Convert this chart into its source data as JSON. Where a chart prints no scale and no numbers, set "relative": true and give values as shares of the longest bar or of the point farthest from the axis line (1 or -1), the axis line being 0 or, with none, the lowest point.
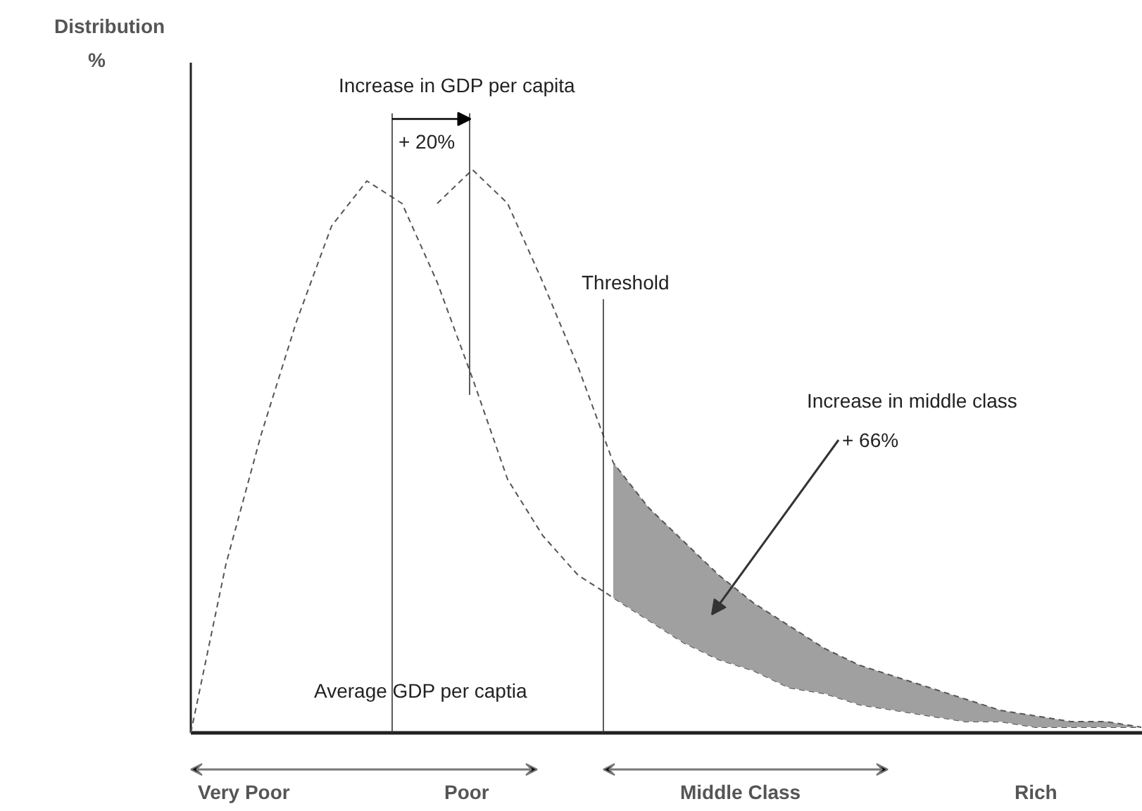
{
  "chart_data": {
    "type": "line",
    "relative": true,
    "categories": [
      null,
      null,
      null,
      null,
      null,
      null,
      null,
      null,
      null,
      null,
      null,
      null,
      null,
      null,
      null,
      null,
      null,
      null,
      null,
      null,
      null,
      null,
      null,
      null,
      null,
      null,
      null,
      null
    ],
    "series": [
      {
        "color": "#555555",
        "line_style": "dashed",
        "values": [
          0,
          0.3,
          0.53,
          0.73,
          0.9,
          0.98,
          0.94,
          0.8,
          0.63,
          0.45,
          0.35,
          0.28,
          0.24,
          0.2,
          0.16,
          0.13,
          0.11,
          0.08,
          0.07,
          0.05,
          0.04,
          0.03,
          0.02,
          0.02,
          0.01,
          0.01,
          0.01,
          0.01
        ]
      },
      {
        "color": "#555555",
        "line_style": "dashed",
        "values": [
          null,
          null,
          null,
          null,
          null,
          null,
          null,
          0.94,
          1,
          0.94,
          0.8,
          0.65,
          0.48,
          0.4,
          0.34,
          0.28,
          0.23,
          0.19,
          0.15,
          0.12,
          0.1,
          0.08,
          0.06,
          0.04,
          0.03,
          0.02,
          0.02,
          0.01
        ],
        "lower": [
          null,
          null,
          null,
          null,
          null,
          null,
          null,
          null,
          null,
          null,
          null,
          null,
          0.24,
          0.2,
          0.16,
          0.13,
          0.11,
          0.08,
          0.07,
          0.05,
          0.04,
          0.03,
          0.02,
          0.02,
          0.01,
          0.01,
          0.01,
          0.01
        ],
        "upper": [
          null,
          null,
          null,
          null,
          null,
          null,
          null,
          null,
          null,
          null,
          null,
          null,
          0.48,
          0.4,
          0.34,
          0.28,
          0.23,
          0.19,
          0.15,
          0.12,
          0.1,
          0.08,
          0.06,
          0.04,
          0.03,
          0.02,
          0.02,
          0.01
        ]
      }
    ],
    "annotations": [
      "Increase in GDP per capita",
      "+ 20%",
      "Threshold",
      "Increase in middle class",
      "+ 66%",
      "Average GDP per captia",
      "Very Poor",
      "Poor",
      "Middle Class",
      "Rich",
      "Distribution %"
    ],
    "grid": false
  }
}
